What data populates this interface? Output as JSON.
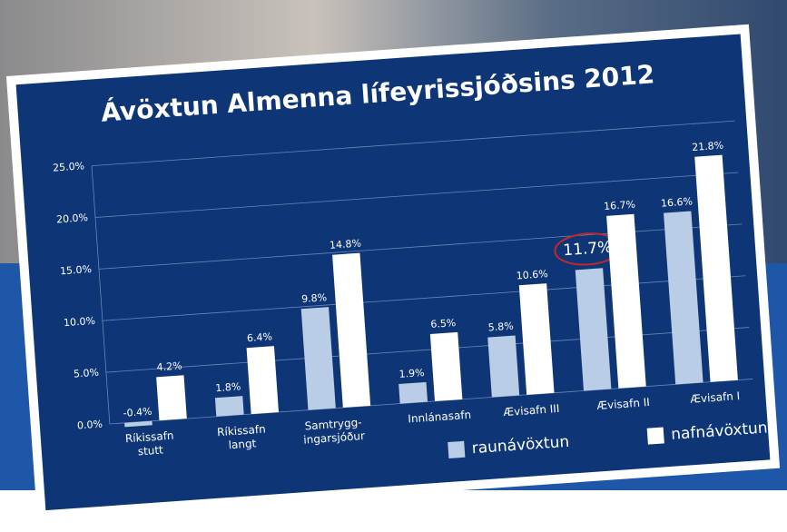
{
  "chart_data": {
    "type": "bar",
    "title": "Ávöxtun Almenna lífeyrissjóðsins 2012",
    "categories": [
      [
        "Ríkissafn",
        "stutt"
      ],
      [
        "Ríkissafn",
        "langt"
      ],
      [
        "Samtrygg-",
        "ingarsjóður"
      ],
      [
        "Innlánasafn"
      ],
      [
        "Ævisafn III"
      ],
      [
        "Ævisafn II"
      ],
      [
        "Ævisafn I"
      ]
    ],
    "series": [
      {
        "name": "raunávöxtun",
        "color": "#b9cde6",
        "values": [
          -0.4,
          1.8,
          9.8,
          1.9,
          5.8,
          11.7,
          16.6
        ],
        "value_labels": [
          "-0.4%",
          "1.8%",
          "9.8%",
          "1.9%",
          "5.8%",
          "11.7%",
          "16.6%"
        ]
      },
      {
        "name": "nafnávöxtun",
        "color": "#ffffff",
        "values": [
          4.2,
          6.4,
          14.8,
          6.5,
          10.6,
          16.7,
          21.8
        ],
        "value_labels": [
          "4.2%",
          "6.4%",
          "14.8%",
          "6.5%",
          "10.6%",
          "16.7%",
          "21.8%"
        ]
      }
    ],
    "ylim": [
      0,
      25
    ],
    "yticks": [
      {
        "value": 0,
        "label": "0.0%"
      },
      {
        "value": 5,
        "label": "5.0%"
      },
      {
        "value": 10,
        "label": "10.0%"
      },
      {
        "value": 15,
        "label": "15.0%"
      },
      {
        "value": 20,
        "label": "20.0%"
      },
      {
        "value": 25,
        "label": "25.0%"
      }
    ],
    "grid": true,
    "legend": "bottom-right"
  }
}
